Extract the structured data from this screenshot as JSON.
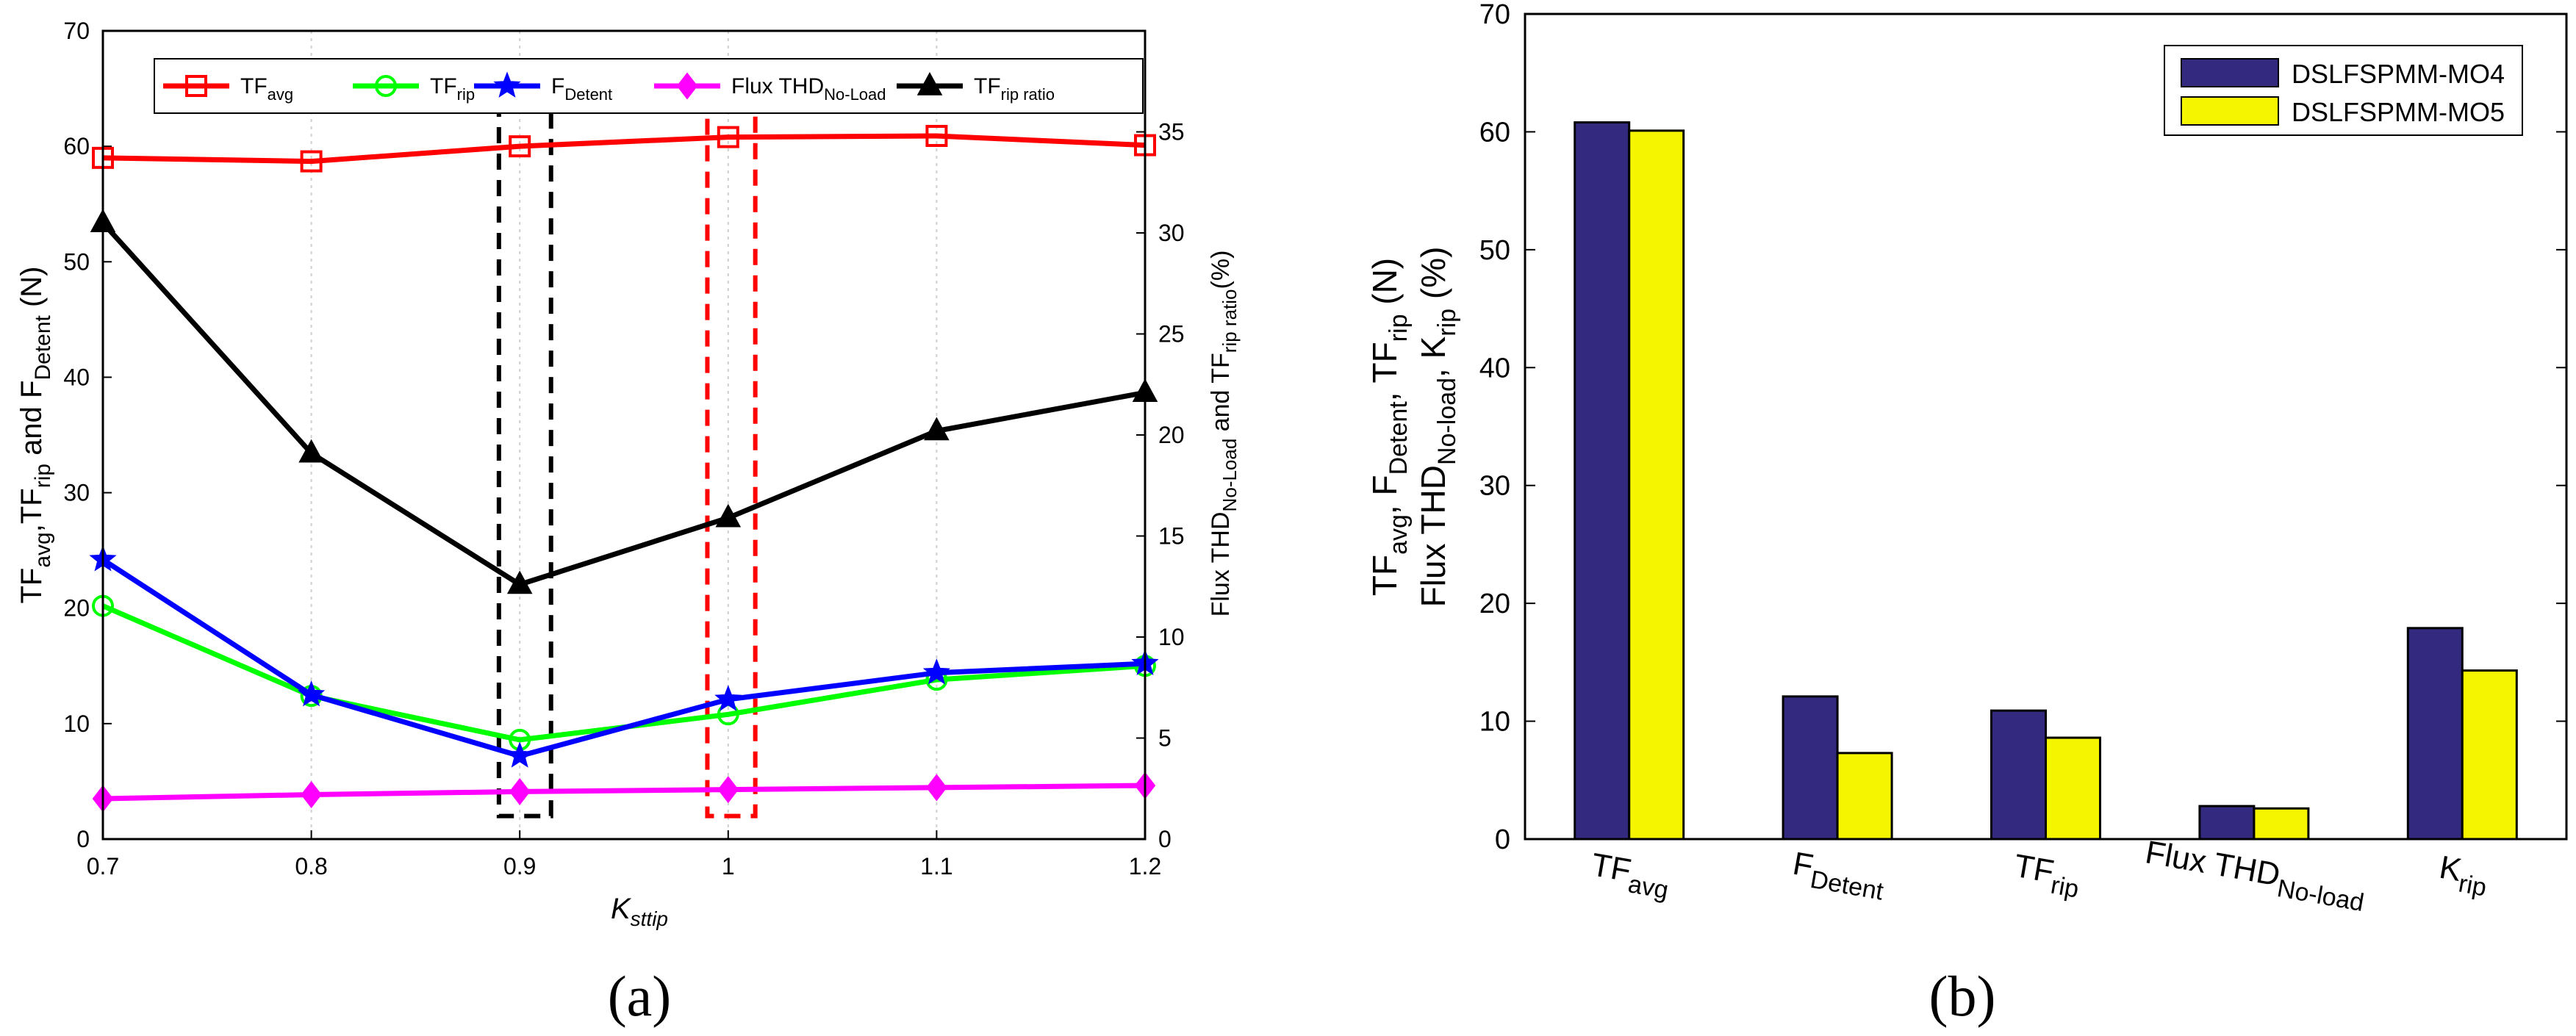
{
  "chart_data": [
    {
      "type": "line",
      "panel_label": "(a)",
      "xlabel": "K",
      "xlabel_sub": "sttip",
      "x": [
        0.7,
        0.8,
        0.9,
        1.0,
        1.1,
        1.2
      ],
      "x_ticks": [
        "0.7",
        "0.8",
        "0.9",
        "1",
        "1.1",
        "1.2"
      ],
      "xlim": [
        0.7,
        1.2
      ],
      "ylim_left": [
        0,
        70
      ],
      "ylim_right": [
        0,
        40
      ],
      "y_ticks_left": [
        "0",
        "10",
        "20",
        "30",
        "40",
        "50",
        "60",
        "70"
      ],
      "y_ticks_right": [
        "0",
        "5",
        "10",
        "15",
        "20",
        "25",
        "30",
        "35"
      ],
      "ylabel_left": {
        "p1": "TF",
        "s1": "avg",
        "p2": ",TF",
        "s2": "rip",
        "p3": " and F",
        "s3": "Detent",
        "p4": " (N)"
      },
      "ylabel_right": {
        "p1": "Flux THD",
        "s1": "No-Load",
        "p2": " and TF",
        "s2": "rip ratio",
        "p3": "(%)"
      },
      "series": [
        {
          "name": "TF",
          "sub": "avg",
          "axis": "left",
          "color": "#ff0000",
          "marker": "square",
          "values": [
            59.0,
            58.7,
            60.0,
            60.8,
            60.9,
            60.1
          ]
        },
        {
          "name": "TF",
          "sub": "rip",
          "axis": "left",
          "color": "#00ff00",
          "marker": "circle",
          "values": [
            20.2,
            12.4,
            8.6,
            10.8,
            13.8,
            15.0
          ]
        },
        {
          "name": "F",
          "sub": "Detent",
          "axis": "left",
          "color": "#0000ff",
          "marker": "star",
          "values": [
            24.2,
            12.5,
            7.2,
            12.1,
            14.4,
            15.2
          ]
        },
        {
          "name": "Flux THD",
          "sub": "No-Load",
          "axis": "right",
          "color": "#ff00ff",
          "marker": "diamond",
          "values": [
            2.0,
            2.2,
            2.35,
            2.45,
            2.55,
            2.65
          ]
        },
        {
          "name": "TF",
          "sub": "rip ratio",
          "axis": "right",
          "color": "#000000",
          "marker": "triangle",
          "values": [
            30.5,
            19.1,
            12.6,
            15.9,
            20.2,
            22.1
          ]
        }
      ],
      "annotations": [
        {
          "type": "dashed-box",
          "color": "#000000",
          "x_from": 0.89,
          "x_to": 0.915,
          "y_from": 2,
          "y_to": 63
        },
        {
          "type": "dashed-box",
          "color": "#ff0000",
          "x_from": 0.99,
          "x_to": 1.013,
          "y_from": 2,
          "y_to": 63
        }
      ]
    },
    {
      "type": "bar",
      "panel_label": "(b)",
      "ylim": [
        0,
        70
      ],
      "y_ticks": [
        "0",
        "10",
        "20",
        "30",
        "40",
        "50",
        "60",
        "70"
      ],
      "ylabel_line1": {
        "p1": "TF",
        "s1": "avg",
        "p2": ", F",
        "s2": "Detent",
        "p3": ", TF",
        "s3": "rip",
        "p4": " (N)"
      },
      "ylabel_line2": {
        "p1": "Flux THD",
        "s1": "No-load",
        "p2": ", K",
        "s2": "rip",
        "p3": " (%)"
      },
      "categories": [
        {
          "main": "TF",
          "sub": "avg"
        },
        {
          "main": "F",
          "sub": "Detent"
        },
        {
          "main": "TF",
          "sub": "rip"
        },
        {
          "main": "Flux THD",
          "sub": "No-load"
        },
        {
          "main": "K",
          "sub": "rip"
        }
      ],
      "series": [
        {
          "name": "DSLFSPMM-MO4",
          "color": "#332a80",
          "values": [
            60.8,
            12.1,
            10.9,
            2.8,
            17.9
          ]
        },
        {
          "name": "DSLFSPMM-MO5",
          "color": "#f5f500",
          "values": [
            60.1,
            7.3,
            8.6,
            2.6,
            14.3
          ]
        }
      ]
    }
  ]
}
